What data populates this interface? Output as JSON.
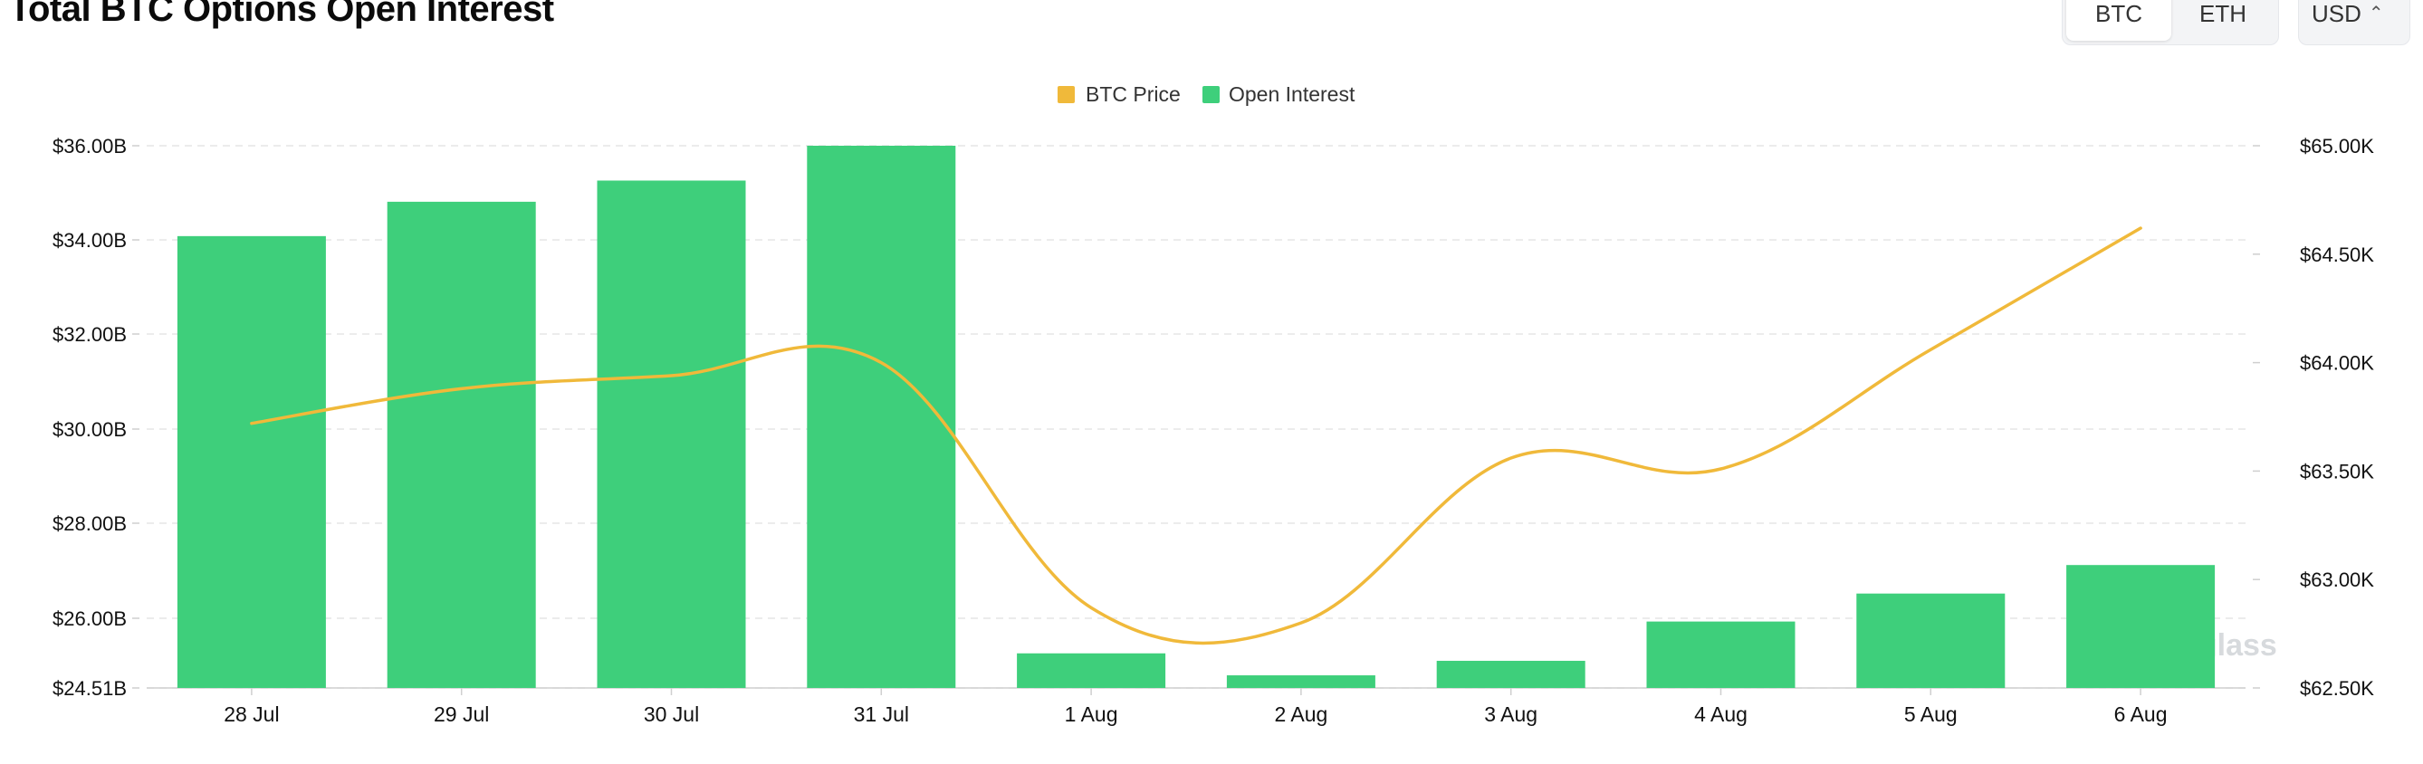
{
  "header": {
    "title": "Total BTC Options Open Interest",
    "asset_tabs": [
      "BTC",
      "ETH"
    ],
    "active_asset": "BTC",
    "currency": "USD"
  },
  "watermark": "coinglass",
  "colors": {
    "open_interest": "#3ecf7b",
    "btc_price": "#f0b93a",
    "grid": "#e6e6e6"
  },
  "chart_data": {
    "type": "bar",
    "title": "Total BTC Options Open Interest",
    "categories": [
      "28 Jul",
      "29 Jul",
      "30 Jul",
      "31 Jul",
      "1 Aug",
      "2 Aug",
      "3 Aug",
      "4 Aug",
      "5 Aug",
      "6 Aug"
    ],
    "legend": [
      "BTC Price",
      "Open Interest"
    ],
    "legend_position": "top-center",
    "grid": true,
    "series": [
      {
        "name": "Open Interest",
        "type": "bar",
        "axis": "left",
        "values": [
          34.08,
          34.81,
          35.26,
          36.0,
          25.25,
          24.78,
          25.09,
          25.93,
          26.52,
          27.12
        ]
      },
      {
        "name": "BTC Price",
        "type": "line",
        "axis": "right",
        "values": [
          63720,
          63880,
          63940,
          64000,
          62870,
          62800,
          63560,
          63510,
          64060,
          64620
        ]
      }
    ],
    "y_left": {
      "ticks": [
        "$36.00B",
        "$34.00B",
        "$32.00B",
        "$30.00B",
        "$28.00B",
        "$26.00B",
        "$24.51B"
      ],
      "tick_values": [
        36,
        34,
        32,
        30,
        28,
        26,
        24.51
      ],
      "range": [
        24.51,
        36.0
      ]
    },
    "y_right": {
      "ticks": [
        "$65.00K",
        "$64.50K",
        "$64.00K",
        "$63.50K",
        "$63.00K",
        "$62.50K"
      ],
      "tick_values": [
        65000,
        64500,
        64000,
        63500,
        63000,
        62500
      ],
      "range": [
        62500,
        65000
      ]
    }
  }
}
